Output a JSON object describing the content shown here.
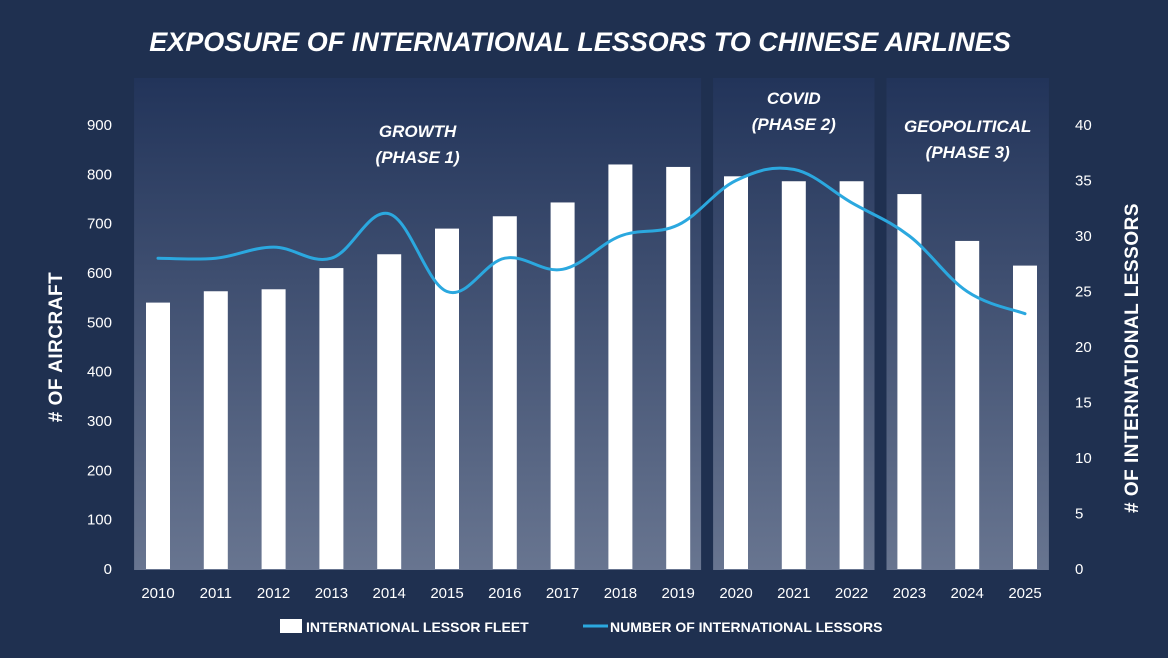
{
  "chart_data": {
    "type": "bar+line",
    "title": "EXPOSURE OF INTERNATIONAL LESSORS TO CHINESE AIRLINES",
    "categories": [
      "2010",
      "2011",
      "2012",
      "2013",
      "2014",
      "2015",
      "2016",
      "2017",
      "2018",
      "2019",
      "2020",
      "2021",
      "2022",
      "2023",
      "2024",
      "2025"
    ],
    "series": [
      {
        "name": "INTERNATIONAL LESSOR FLEET",
        "type": "bar",
        "axis": "left",
        "color": "#ffffff",
        "values": [
          540,
          563,
          567,
          610,
          638,
          690,
          715,
          743,
          820,
          815,
          796,
          786,
          786,
          760,
          665,
          615
        ]
      },
      {
        "name": "NUMBER OF INTERNATIONAL LESSORS",
        "type": "line",
        "axis": "right",
        "color": "#2ba8df",
        "values": [
          28,
          28,
          29,
          28,
          32,
          25,
          28,
          27,
          30,
          31,
          35,
          36,
          33,
          30,
          25,
          23
        ]
      }
    ],
    "ylabel": "# OF AIRCRAFT",
    "y2label": "# OF INTERNATIONAL LESSORS",
    "ylim": [
      0,
      900
    ],
    "yticks": [
      "0",
      "100",
      "200",
      "300",
      "400",
      "500",
      "600",
      "700",
      "800",
      "900"
    ],
    "y2lim": [
      0,
      40
    ],
    "y2ticks": [
      "0",
      "5",
      "10",
      "15",
      "20",
      "25",
      "30",
      "35",
      "40"
    ],
    "phases": [
      {
        "label_line1": "GROWTH",
        "label_line2": "(PHASE 1)",
        "from": "2010",
        "to": "2019"
      },
      {
        "label_line1": "COVID",
        "label_line2": "(PHASE 2)",
        "from": "2020",
        "to": "2022"
      },
      {
        "label_line1": "GEOPOLITICAL",
        "label_line2": "(PHASE 3)",
        "from": "2023",
        "to": "2025"
      }
    ],
    "legend_position": "bottom",
    "grid": false
  }
}
